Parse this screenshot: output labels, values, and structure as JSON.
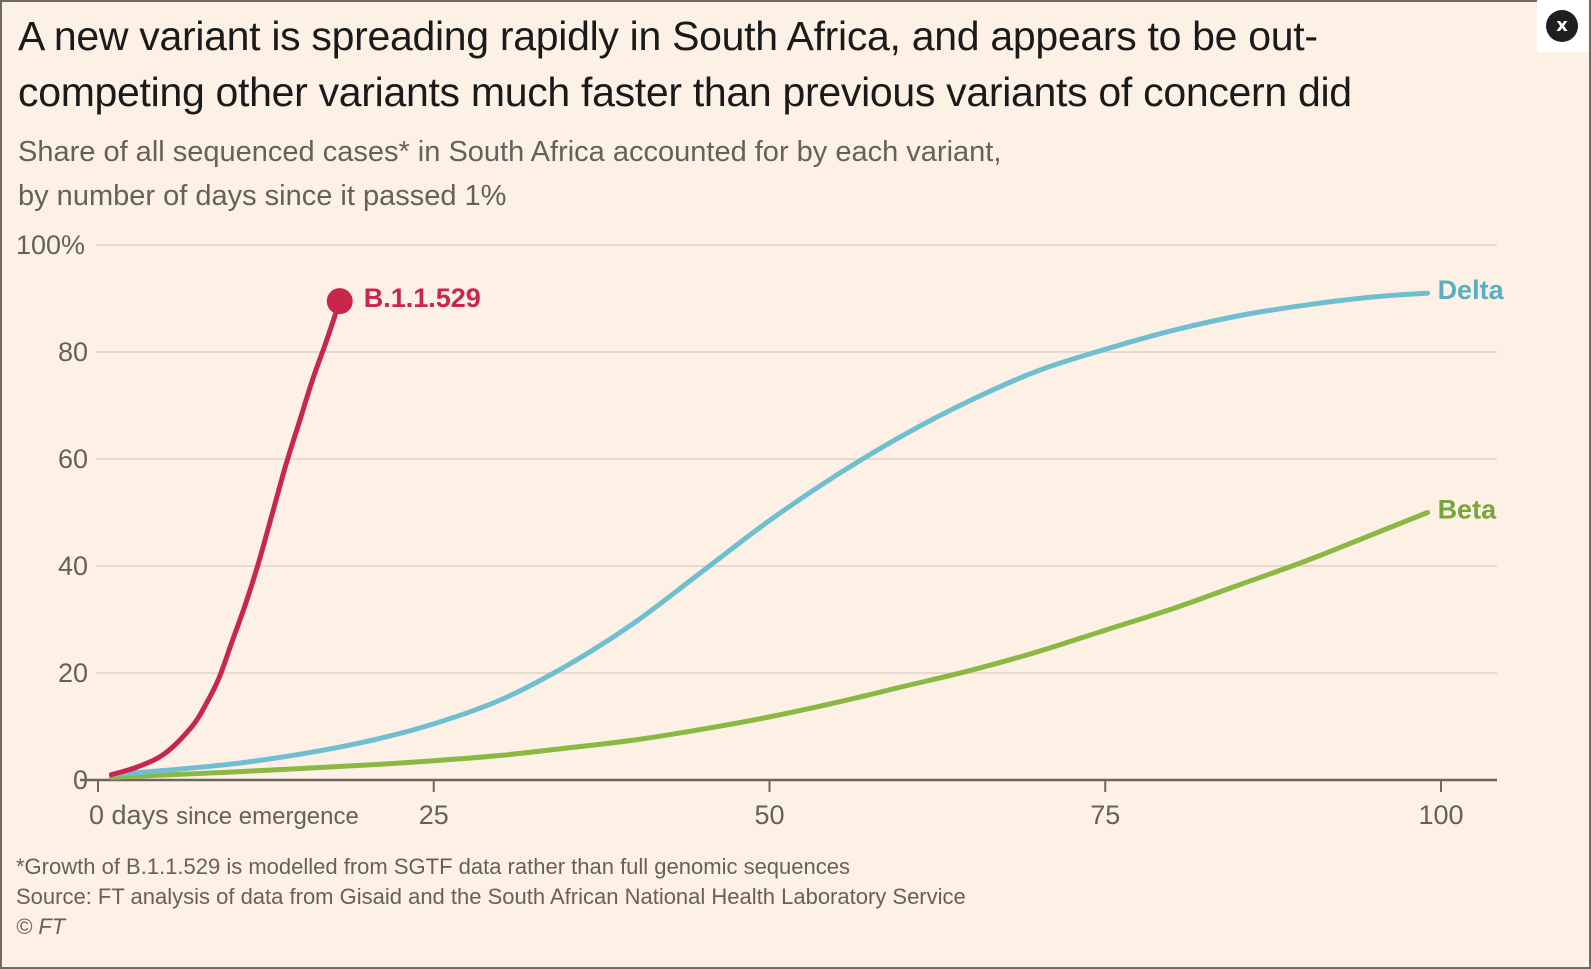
{
  "close_button": {
    "label": "x",
    "icon": "close-icon"
  },
  "chart_data": {
    "type": "line",
    "title": "A new variant is spreading rapidly in South Africa, and appears to be out-competing other variants much faster than previous variants of concern did",
    "title_lines": [
      "A new variant is spreading rapidly in South Africa, and appears to be out-",
      "competing other variants much faster than previous variants of concern did"
    ],
    "subtitle_lines": [
      "Share of all sequenced cases* in South Africa accounted for by each variant,",
      "by number of days since it passed 1%"
    ],
    "xlabel": "days since emergence",
    "ylabel": "",
    "xlim": [
      0,
      104
    ],
    "ylim": [
      0,
      100
    ],
    "x_ticks": [
      0,
      25,
      50,
      75,
      100
    ],
    "x_tick_labels": [
      "0",
      "25",
      "50",
      "75",
      "100"
    ],
    "y_ticks": [
      0,
      20,
      40,
      60,
      80,
      100
    ],
    "y_tick_labels": [
      "0",
      "20",
      "40",
      "60",
      "80",
      "100%"
    ],
    "grid": true,
    "legend": "direct labels at line ends",
    "series": [
      {
        "name": "B.1.1.529",
        "color": "#c8264a",
        "end_marker": true,
        "x": [
          1,
          3,
          5,
          7,
          8,
          9,
          10,
          11,
          12,
          13,
          14,
          15,
          16,
          17,
          18
        ],
        "values": [
          1,
          2.5,
          5,
          10,
          14,
          19,
          26,
          33,
          41,
          50,
          59,
          67,
          75,
          82,
          89.5
        ]
      },
      {
        "name": "Delta",
        "color": "#6fbfd0",
        "end_marker": false,
        "x": [
          1,
          5,
          10,
          15,
          20,
          25,
          30,
          35,
          40,
          45,
          50,
          55,
          60,
          65,
          70,
          75,
          80,
          85,
          90,
          95,
          99
        ],
        "values": [
          1,
          1.8,
          3,
          4.8,
          7.2,
          10.5,
          15,
          21.5,
          29.5,
          39,
          48.5,
          57,
          64.5,
          71,
          76.5,
          80.5,
          84,
          86.8,
          88.8,
          90.3,
          91
        ]
      },
      {
        "name": "Beta",
        "color": "#8ab843",
        "end_marker": false,
        "x": [
          1,
          10,
          20,
          25,
          30,
          35,
          40,
          45,
          50,
          55,
          60,
          65,
          70,
          75,
          80,
          85,
          90,
          95,
          99
        ],
        "values": [
          0.5,
          1.5,
          2.8,
          3.6,
          4.6,
          6,
          7.5,
          9.5,
          11.8,
          14.5,
          17.5,
          20.5,
          24,
          28,
          32,
          36.5,
          41,
          46,
          50
        ]
      }
    ],
    "footnotes": [
      "*Growth of B.1.1.529 is modelled from SGTF data rather than full genomic sequences",
      "Source: FT analysis of data from Gisaid and the South African National Health Laboratory Service",
      "© FT"
    ]
  }
}
